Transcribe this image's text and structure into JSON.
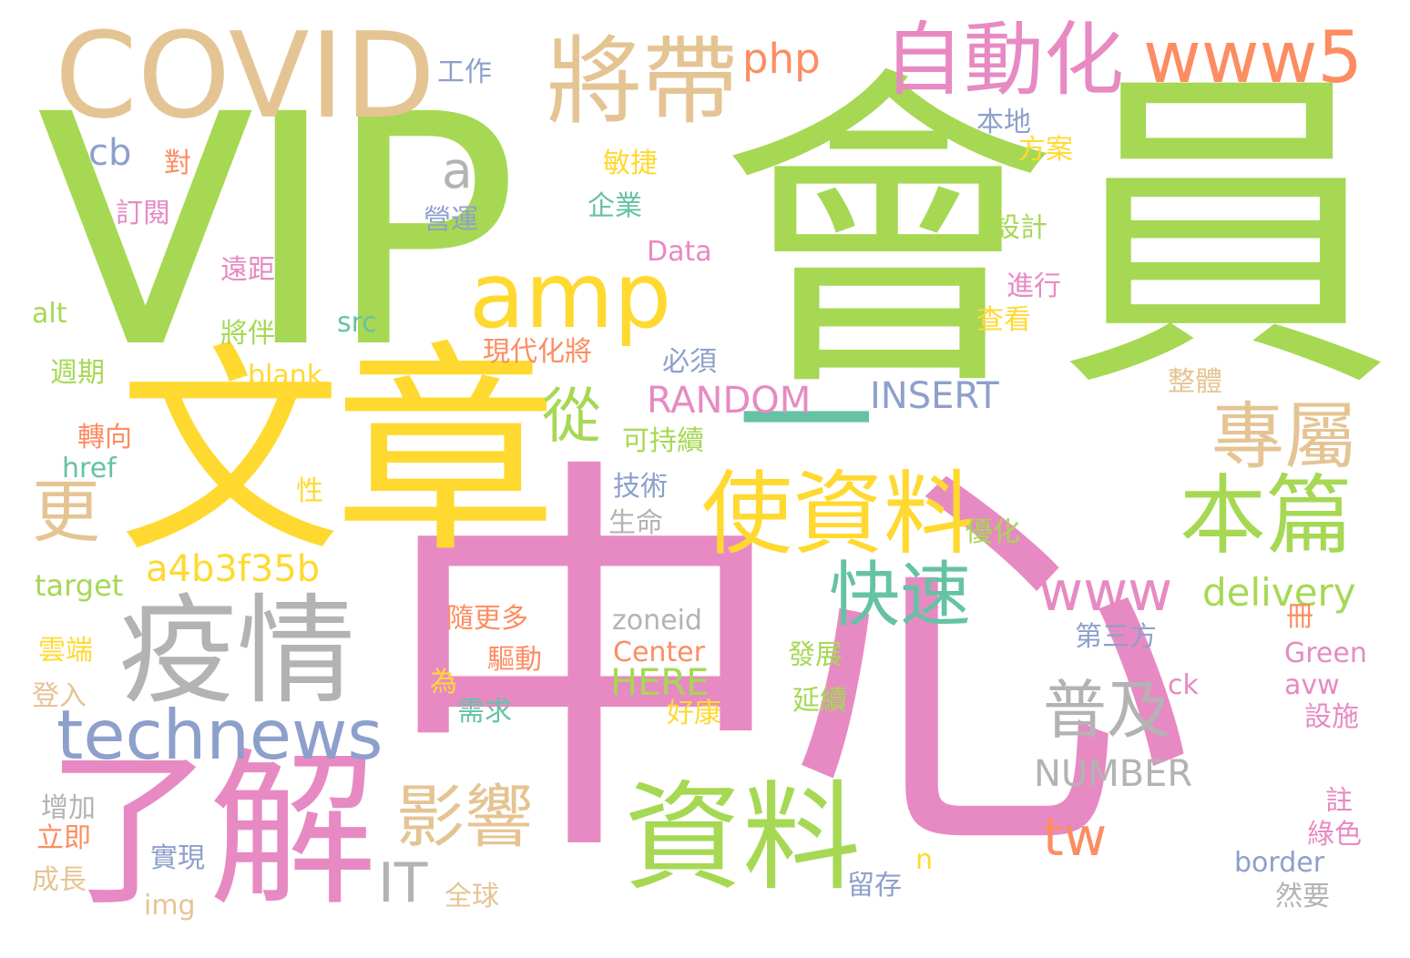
{
  "palette": {
    "green": "#a6d854",
    "pink": "#e78ac3",
    "yellow": "#ffd92f",
    "tan": "#e5c494",
    "grey": "#b3b3b3",
    "blue": "#8da0cb",
    "orange": "#fc8d62",
    "teal": "#66c2a5"
  },
  "words": [
    {
      "text": "中心"
    },
    {
      "text": "會員"
    },
    {
      "text": "VIP"
    },
    {
      "text": "文章"
    },
    {
      "text": "了解"
    },
    {
      "text": "COVID"
    },
    {
      "text": "一"
    },
    {
      "text": "疫情"
    },
    {
      "text": "資料"
    },
    {
      "text": "使資料"
    },
    {
      "text": "將帶"
    },
    {
      "text": "amp"
    },
    {
      "text": "自動化"
    },
    {
      "text": "本篇"
    },
    {
      "text": "technews"
    },
    {
      "text": "www5"
    },
    {
      "text": "專屬"
    },
    {
      "text": "快速"
    },
    {
      "text": "影響"
    },
    {
      "text": "普及"
    },
    {
      "text": "www"
    },
    {
      "text": "從"
    },
    {
      "text": "更"
    },
    {
      "text": "a"
    },
    {
      "text": "a4b3f35b"
    },
    {
      "text": "php"
    },
    {
      "text": "RANDOM"
    },
    {
      "text": "INSERT"
    },
    {
      "text": "NUMBER"
    },
    {
      "text": "delivery"
    },
    {
      "text": "IT"
    },
    {
      "text": "tw"
    },
    {
      "text": "HERE"
    },
    {
      "text": "cb"
    },
    {
      "text": "工作"
    },
    {
      "text": "本地"
    },
    {
      "text": "對"
    },
    {
      "text": "方案"
    },
    {
      "text": "敏捷"
    },
    {
      "text": "訂閱"
    },
    {
      "text": "企業"
    },
    {
      "text": "營運"
    },
    {
      "text": "設計"
    },
    {
      "text": "遠距"
    },
    {
      "text": "Data"
    },
    {
      "text": "進行"
    },
    {
      "text": "alt"
    },
    {
      "text": "src"
    },
    {
      "text": "查看"
    },
    {
      "text": "將伴"
    },
    {
      "text": "現代化將"
    },
    {
      "text": "週期"
    },
    {
      "text": "blank"
    },
    {
      "text": "必須"
    },
    {
      "text": "整體"
    },
    {
      "text": "轉向"
    },
    {
      "text": "可持續"
    },
    {
      "text": "href"
    },
    {
      "text": "性"
    },
    {
      "text": "技術"
    },
    {
      "text": "生命"
    },
    {
      "text": "優化"
    },
    {
      "text": "target"
    },
    {
      "text": "隨更多"
    },
    {
      "text": "zoneid"
    },
    {
      "text": "冊"
    },
    {
      "text": "雲端"
    },
    {
      "text": "驅動"
    },
    {
      "text": "Center"
    },
    {
      "text": "第三方"
    },
    {
      "text": "Green"
    },
    {
      "text": "發展"
    },
    {
      "text": "登入"
    },
    {
      "text": "為"
    },
    {
      "text": "需求"
    },
    {
      "text": "好康"
    },
    {
      "text": "延續"
    },
    {
      "text": "ck"
    },
    {
      "text": "avw"
    },
    {
      "text": "設施"
    },
    {
      "text": "增加"
    },
    {
      "text": "註"
    },
    {
      "text": "立即"
    },
    {
      "text": "實現"
    },
    {
      "text": "n"
    },
    {
      "text": "綠色"
    },
    {
      "text": "border"
    },
    {
      "text": "成長"
    },
    {
      "text": "留存"
    },
    {
      "text": "img"
    },
    {
      "text": "全球"
    },
    {
      "text": "然要"
    }
  ]
}
